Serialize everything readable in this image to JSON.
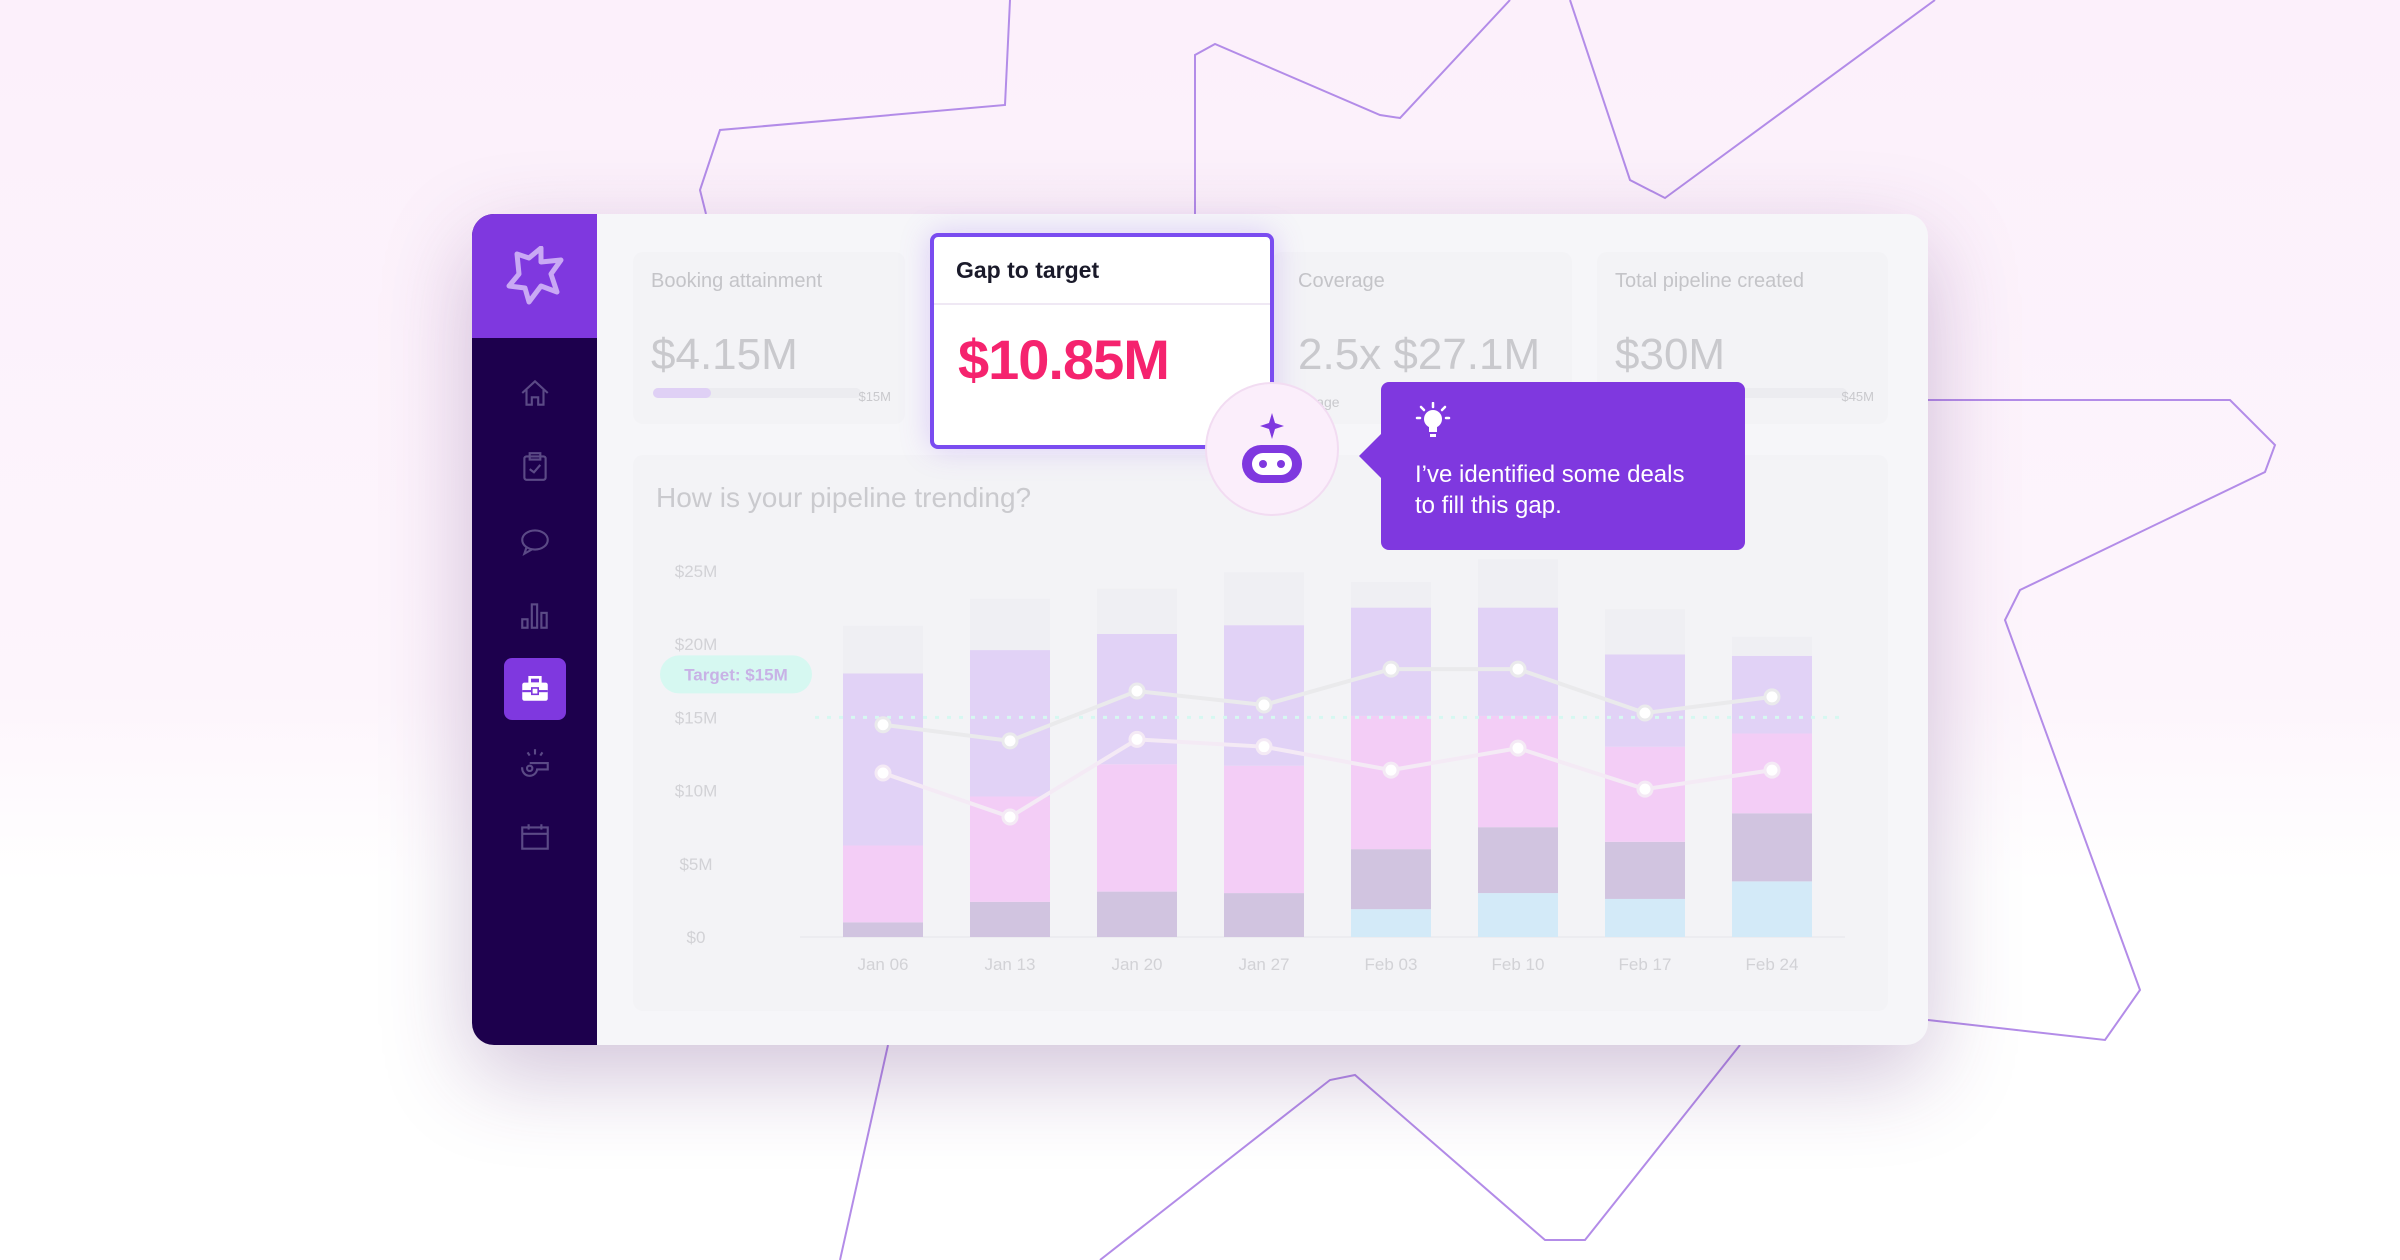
{
  "sidebar": {
    "items": [
      {
        "icon": "home-icon",
        "active": false
      },
      {
        "icon": "clipboard-check-icon",
        "active": false
      },
      {
        "icon": "chat-icon",
        "active": false
      },
      {
        "icon": "bar-chart-icon",
        "active": false
      },
      {
        "icon": "briefcase-icon",
        "active": true
      },
      {
        "icon": "whistle-icon",
        "active": false
      },
      {
        "icon": "calendar-icon",
        "active": false
      }
    ]
  },
  "metrics": {
    "booking": {
      "label": "Booking attainment",
      "value": "$4.15M",
      "cap": "$15M",
      "progress": 0.28
    },
    "gap": {
      "label": "Gap to target",
      "value": "$10.85M"
    },
    "coverage": {
      "label": "Coverage",
      "value": "2.5x  $27.1M",
      "sub": "coverage"
    },
    "total": {
      "label": "Total pipeline created",
      "value": "$30M",
      "cap": "$45M",
      "progress": 0.67
    }
  },
  "assistant": {
    "message": "I’ve identified some deals to fill this gap."
  },
  "colors": {
    "accent": "#7f38df",
    "gap": "#f5236e",
    "sidebar": "#1d004d"
  },
  "chart_data": {
    "type": "bar",
    "title": "How is your pipeline trending?",
    "categories": [
      "Jan 06",
      "Jan 13",
      "Jan 20",
      "Jan 27",
      "Feb 03",
      "Feb 10",
      "Feb 17",
      "Feb 24"
    ],
    "yticks": [
      "$0",
      "$5M",
      "$10M",
      "$15M",
      "$20M",
      "$25M"
    ],
    "ylim": [
      0,
      25
    ],
    "stacked": true,
    "series": [
      {
        "color": "#d3eaf8",
        "values": [
          0,
          0,
          0,
          0,
          1.9,
          3.0,
          2.6,
          3.8
        ]
      },
      {
        "color": "#d1c4e0",
        "values": [
          1.0,
          2.4,
          3.1,
          3.0,
          4.1,
          4.5,
          3.9,
          4.65
        ]
      },
      {
        "color": "#f3cdf6",
        "values": [
          5.25,
          7.2,
          8.7,
          8.7,
          9.1,
          7.6,
          6.5,
          5.45
        ]
      },
      {
        "color": "#e1d2f6",
        "values": [
          11.75,
          10.0,
          8.9,
          9.6,
          7.4,
          7.4,
          6.3,
          5.3
        ]
      },
      {
        "color": "#efeff3",
        "values": [
          3.25,
          3.5,
          3.1,
          3.6,
          1.75,
          3.3,
          3.1,
          1.3
        ]
      }
    ],
    "lines": [
      {
        "color": "#eaeaec",
        "values": [
          14.5,
          13.4,
          16.8,
          15.85,
          18.3,
          18.3,
          15.3,
          16.4
        ]
      },
      {
        "color": "#f4eaf5",
        "values": [
          11.2,
          8.2,
          13.5,
          13.0,
          11.4,
          12.9,
          10.1,
          11.4
        ]
      }
    ],
    "target": {
      "value": 15,
      "label": "Target: $15M",
      "color": "#d6f8f1"
    }
  }
}
